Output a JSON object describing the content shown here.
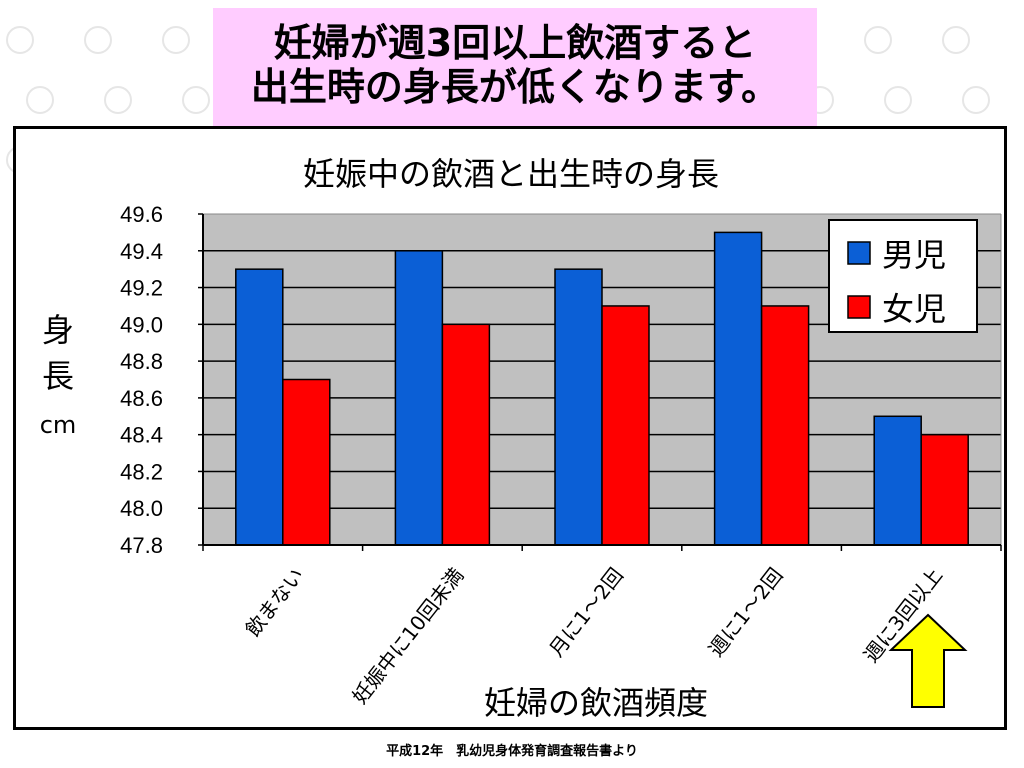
{
  "banner": {
    "line1": "妊婦が週3回以上飲酒すると",
    "line2": "出生時の身長が低くなります。"
  },
  "footnote": "平成12年　乳幼児身体発育調査報告書より",
  "colors": {
    "boys": "#0b5fd6",
    "girls": "#ff0000",
    "plot_bg": "#c0c0c0",
    "banner_bg": "#ffccff",
    "arrow": "#ffff00"
  },
  "chart_data": {
    "type": "bar",
    "title": "妊娠中の飲酒と出生時の身長",
    "xlabel": "妊婦の飲酒頻度",
    "ylabel_chars": [
      "身",
      "長",
      "cm"
    ],
    "categories": [
      "飲まない",
      "妊娠中に10回未満",
      "月に1～2回",
      "週に1～2回",
      "週に3回以上"
    ],
    "series": [
      {
        "name": "男児",
        "color": "#0b5fd6",
        "values": [
          49.3,
          49.4,
          49.3,
          49.5,
          48.5
        ]
      },
      {
        "name": "女児",
        "color": "#ff0000",
        "values": [
          48.7,
          49.0,
          49.1,
          49.1,
          48.4
        ]
      }
    ],
    "ylim": [
      47.8,
      49.6
    ],
    "yticks": [
      "49.6",
      "49.4",
      "49.2",
      "49.0",
      "48.8",
      "48.6",
      "48.4",
      "48.2",
      "48.0",
      "47.8"
    ],
    "grid": true,
    "legend_position": "top-right"
  }
}
